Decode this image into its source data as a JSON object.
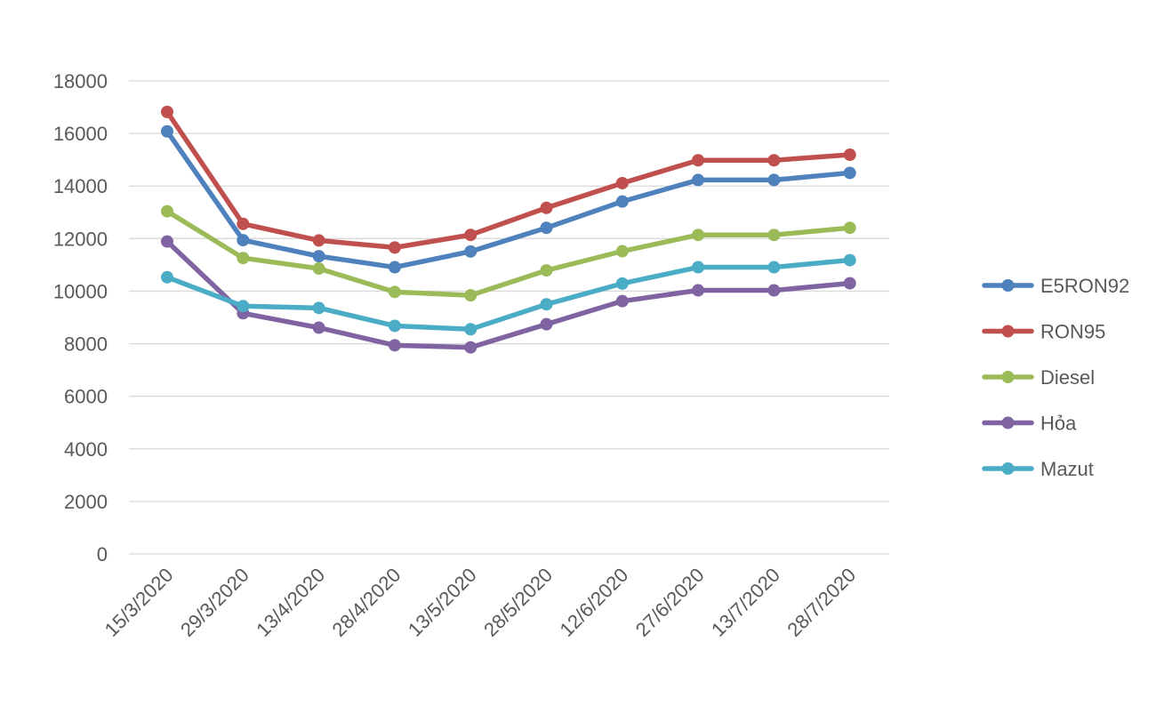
{
  "chart_data": {
    "type": "line",
    "title": "",
    "xlabel": "",
    "ylabel": "",
    "categories": [
      "15/3/2020",
      "29/3/2020",
      "13/4/2020",
      "28/4/2020",
      "13/5/2020",
      "28/5/2020",
      "12/6/2020",
      "27/6/2020",
      "13/7/2020",
      "28/7/2020"
    ],
    "ylim": [
      0,
      18000
    ],
    "yticks": [
      0,
      2000,
      4000,
      6000,
      8000,
      10000,
      12000,
      14000,
      16000,
      18000
    ],
    "grid": true,
    "legend_position": "right",
    "series": [
      {
        "name": "E5RON92",
        "color": "#4f81bd",
        "values": [
          16080,
          11940,
          11330,
          10910,
          11510,
          12410,
          13410,
          14230,
          14230,
          14500
        ]
      },
      {
        "name": "RON95",
        "color": "#c0504d",
        "values": [
          16820,
          12560,
          11930,
          11660,
          12140,
          13170,
          14110,
          14980,
          14980,
          15190
        ]
      },
      {
        "name": "Diesel",
        "color": "#9bbb59",
        "values": [
          13040,
          11260,
          10860,
          9970,
          9840,
          10790,
          11520,
          12140,
          12140,
          12410
        ]
      },
      {
        "name": "Hỏa",
        "color": "#8064a2",
        "values": [
          11890,
          9160,
          8610,
          7940,
          7860,
          8740,
          9620,
          10030,
          10030,
          10300
        ]
      },
      {
        "name": "Mazut",
        "color": "#4bacc6",
        "values": [
          10530,
          9430,
          9360,
          8680,
          8550,
          9500,
          10290,
          10910,
          10910,
          11180
        ]
      }
    ]
  }
}
